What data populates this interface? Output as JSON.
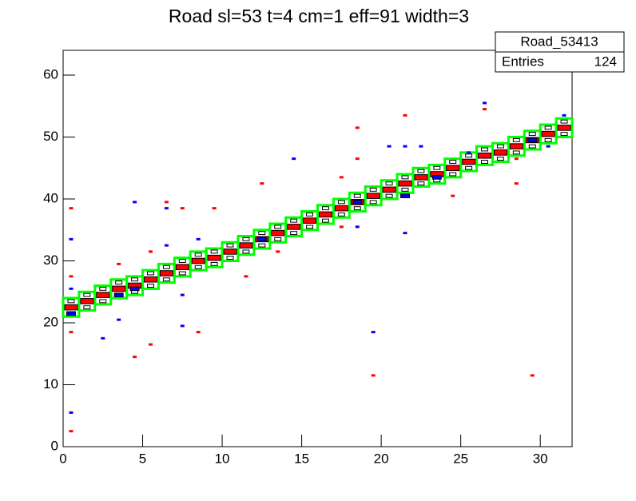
{
  "chart_data": {
    "type": "box2d",
    "title": "Road sl=53 t=4 cm=1 eff=91 width=3",
    "stats": {
      "name": "Road_53413",
      "entries_label": "Entries",
      "entries": 124
    },
    "xlim": [
      0,
      32
    ],
    "xticks": [
      0,
      5,
      10,
      15,
      20,
      25,
      30
    ],
    "ylim": [
      0,
      64
    ],
    "yticks": [
      0,
      10,
      20,
      30,
      40,
      50,
      60
    ],
    "road": {
      "color": "#00ff00",
      "x": [
        0.5,
        1.5,
        2.5,
        3.5,
        4.5,
        5.5,
        6.5,
        7.5,
        8.5,
        9.5,
        10.5,
        11.5,
        12.5,
        13.5,
        14.5,
        15.5,
        16.5,
        17.5,
        18.5,
        19.5,
        20.5,
        21.5,
        22.5,
        23.5,
        24.5,
        25.5,
        26.5,
        27.5,
        28.5,
        29.5,
        30.5,
        31.5
      ],
      "low": [
        21,
        22,
        23,
        24,
        24.5,
        25.5,
        26.5,
        27.5,
        28.5,
        29,
        30,
        31,
        32,
        33,
        34,
        35,
        36,
        37,
        38,
        39,
        40,
        41,
        42,
        42.5,
        43.5,
        44.5,
        45.5,
        46,
        47,
        48,
        49,
        50
      ],
      "high": [
        24,
        25,
        26,
        27,
        27.5,
        28.5,
        29.5,
        30.5,
        31.5,
        32,
        33,
        34,
        35,
        36,
        37,
        38,
        39,
        40,
        41,
        42,
        43,
        44,
        45,
        45.5,
        46.5,
        47.5,
        48.5,
        49,
        50,
        51,
        52,
        53
      ]
    },
    "series": [
      {
        "color": "#ff0000",
        "marker": "big",
        "x": [
          0.5,
          1.5,
          2.5,
          3.5,
          4.5,
          5.5,
          6.5,
          7.5,
          8.5,
          9.5,
          10.5,
          11.5,
          12.5,
          13.5,
          14.5,
          15.5,
          16.5,
          17.5,
          18.5,
          19.5,
          20.5,
          21.5,
          22.5,
          23.5,
          24.5,
          25.5,
          26.5,
          27.5,
          28.5,
          29.5,
          30.5,
          31.5
        ],
        "y": [
          22.5,
          23.5,
          24.5,
          25.5,
          26,
          27,
          28,
          29,
          30,
          30.5,
          31.5,
          32.5,
          33.5,
          34.5,
          35.5,
          36.5,
          37.5,
          38.5,
          39.5,
          40.5,
          41.5,
          42.5,
          43.5,
          44,
          45,
          46,
          47,
          47.5,
          48.5,
          49.5,
          50.5,
          51.5
        ]
      },
      {
        "color": "#000000",
        "marker": "outline",
        "x": [
          0.5,
          1.5,
          2.5,
          3.5,
          4.5,
          5.5,
          6.5,
          7.5,
          8.5,
          9.5,
          10.5,
          11.5,
          12.5,
          13.5,
          14.5,
          15.5,
          16.5,
          17.5,
          18.5,
          19.5,
          20.5,
          21.5,
          22.5,
          23.5,
          24.5,
          25.5,
          26.5,
          27.5,
          28.5,
          29.5,
          30.5,
          31.5,
          0.5,
          1.5,
          2.5,
          3.5,
          4.5,
          5.5,
          6.5,
          7.5,
          8.5,
          9.5,
          10.5,
          11.5,
          12.5,
          13.5,
          14.5,
          15.5,
          16.5,
          17.5,
          18.5,
          19.5,
          20.5,
          21.5,
          22.5,
          23.5,
          24.5,
          25.5,
          26.5,
          27.5,
          28.5,
          29.5,
          30.5,
          31.5
        ],
        "y": [
          23.5,
          24.5,
          25.5,
          26.5,
          27,
          28,
          29,
          30,
          31,
          31.5,
          32.5,
          33.5,
          34.5,
          35.5,
          36.5,
          37.5,
          38.5,
          39.5,
          40.5,
          41.5,
          42.5,
          43.5,
          44.5,
          45,
          46,
          47,
          48,
          48.5,
          49.5,
          50.5,
          51.5,
          52.5,
          21.5,
          22.5,
          23.5,
          24.5,
          25,
          26,
          27,
          28,
          29,
          29.5,
          30.5,
          31.5,
          32.5,
          33.5,
          34.5,
          35.5,
          36.5,
          37.5,
          38.5,
          39.5,
          40.5,
          41.5,
          42.5,
          43,
          44,
          45,
          46,
          46.5,
          47.5,
          48.5,
          49.5,
          50.5
        ]
      },
      {
        "color": "#0000ff",
        "marker": "mid",
        "x": [
          0.5,
          3.5,
          4.5,
          12.5,
          18.5,
          21.5,
          23.5,
          29.5
        ],
        "y": [
          21.5,
          24.5,
          25.5,
          33.5,
          39.5,
          40.5,
          43.5,
          49.5
        ]
      },
      {
        "color": "#ff0000",
        "marker": "dash",
        "x": [
          0.5,
          0.5,
          0.5,
          0.5,
          3.5,
          4.5,
          5.5,
          5.5,
          6.5,
          7.5,
          8.5,
          9.5,
          11.5,
          12.5,
          13.5,
          17.5,
          17.5,
          18.5,
          18.5,
          19.5,
          21.5,
          24.5,
          26.5,
          28.5,
          28.5,
          29.5
        ],
        "y": [
          38.5,
          27.5,
          18.5,
          2.5,
          29.5,
          14.5,
          16.5,
          31.5,
          39.5,
          38.5,
          18.5,
          38.5,
          27.5,
          42.5,
          31.5,
          43.5,
          35.5,
          51.5,
          46.5,
          11.5,
          53.5,
          40.5,
          54.5,
          42.5,
          46.5,
          11.5
        ]
      },
      {
        "color": "#0000ff",
        "marker": "dash",
        "x": [
          0.5,
          0.5,
          0.5,
          2.5,
          3.5,
          4.5,
          6.5,
          6.5,
          7.5,
          7.5,
          8.5,
          14.5,
          18.5,
          19.5,
          20.5,
          21.5,
          21.5,
          22.5,
          25.5,
          26.5,
          30.5,
          31.5
        ],
        "y": [
          33.5,
          25.5,
          5.5,
          17.5,
          20.5,
          39.5,
          38.5,
          32.5,
          24.5,
          19.5,
          33.5,
          46.5,
          35.5,
          18.5,
          48.5,
          48.5,
          34.5,
          48.5,
          47.5,
          55.5,
          48.5,
          53.5
        ]
      }
    ]
  }
}
